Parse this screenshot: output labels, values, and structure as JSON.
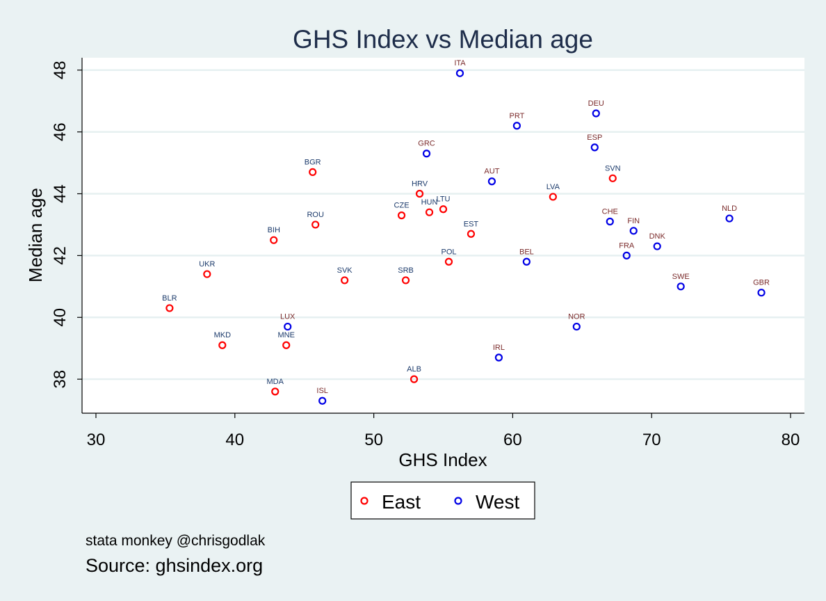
{
  "chart_data": {
    "type": "scatter",
    "title": "GHS Index vs Median age",
    "xlabel": "GHS Index",
    "ylabel": "Median age",
    "xlim": [
      29,
      81
    ],
    "ylim": [
      36.9,
      48.4
    ],
    "xticks": [
      30,
      40,
      50,
      60,
      70,
      80
    ],
    "yticks": [
      38,
      40,
      42,
      44,
      46,
      48
    ],
    "grid": "horizontal",
    "legend_position": "bottom",
    "series": [
      {
        "name": "East",
        "color": "#ff0000",
        "label_color": "#1b3a6b",
        "points": [
          {
            "label": "BGR",
            "x": 45.6,
            "y": 44.7
          },
          {
            "label": "ROU",
            "x": 45.8,
            "y": 43.0
          },
          {
            "label": "BIH",
            "x": 42.8,
            "y": 42.5
          },
          {
            "label": "UKR",
            "x": 38.0,
            "y": 41.4
          },
          {
            "label": "BLR",
            "x": 35.3,
            "y": 40.3
          },
          {
            "label": "MKD",
            "x": 39.1,
            "y": 39.1
          },
          {
            "label": "MNE",
            "x": 43.7,
            "y": 39.1
          },
          {
            "label": "MDA",
            "x": 42.9,
            "y": 37.6
          },
          {
            "label": "SVK",
            "x": 47.9,
            "y": 41.2
          },
          {
            "label": "SRB",
            "x": 52.3,
            "y": 41.2
          },
          {
            "label": "ALB",
            "x": 52.9,
            "y": 38.0
          },
          {
            "label": "CZE",
            "x": 52.0,
            "y": 43.3
          },
          {
            "label": "HRV",
            "x": 53.3,
            "y": 44.0
          },
          {
            "label": "HUN",
            "x": 54.0,
            "y": 43.4
          },
          {
            "label": "LTU",
            "x": 55.0,
            "y": 43.5
          },
          {
            "label": "EST",
            "x": 57.0,
            "y": 42.7
          },
          {
            "label": "POL",
            "x": 55.4,
            "y": 41.8
          },
          {
            "label": "LVA",
            "x": 62.9,
            "y": 43.9
          },
          {
            "label": "SVN",
            "x": 67.2,
            "y": 44.5
          }
        ]
      },
      {
        "name": "West",
        "color": "#0000e6",
        "label_color": "#7a2a2a",
        "points": [
          {
            "label": "ITA",
            "x": 56.2,
            "y": 47.9
          },
          {
            "label": "PRT",
            "x": 60.3,
            "y": 46.2
          },
          {
            "label": "DEU",
            "x": 66.0,
            "y": 46.6
          },
          {
            "label": "ESP",
            "x": 65.9,
            "y": 45.5
          },
          {
            "label": "GRC",
            "x": 53.8,
            "y": 45.3
          },
          {
            "label": "AUT",
            "x": 58.5,
            "y": 44.4
          },
          {
            "label": "CHE",
            "x": 67.0,
            "y": 43.1
          },
          {
            "label": "FIN",
            "x": 68.7,
            "y": 42.8
          },
          {
            "label": "DNK",
            "x": 70.4,
            "y": 42.3
          },
          {
            "label": "FRA",
            "x": 68.2,
            "y": 42.0
          },
          {
            "label": "NLD",
            "x": 75.6,
            "y": 43.2
          },
          {
            "label": "BEL",
            "x": 61.0,
            "y": 41.8
          },
          {
            "label": "SWE",
            "x": 72.1,
            "y": 41.0
          },
          {
            "label": "GBR",
            "x": 77.9,
            "y": 40.8
          },
          {
            "label": "LUX",
            "x": 43.8,
            "y": 39.7
          },
          {
            "label": "NOR",
            "x": 64.6,
            "y": 39.7
          },
          {
            "label": "IRL",
            "x": 59.0,
            "y": 38.7
          },
          {
            "label": "ISL",
            "x": 46.3,
            "y": 37.3
          }
        ]
      }
    ]
  },
  "legend": {
    "east_label": "East",
    "west_label": "West"
  },
  "note": "stata monkey @chrisgodlak",
  "caption": "Source: ghsindex.org"
}
